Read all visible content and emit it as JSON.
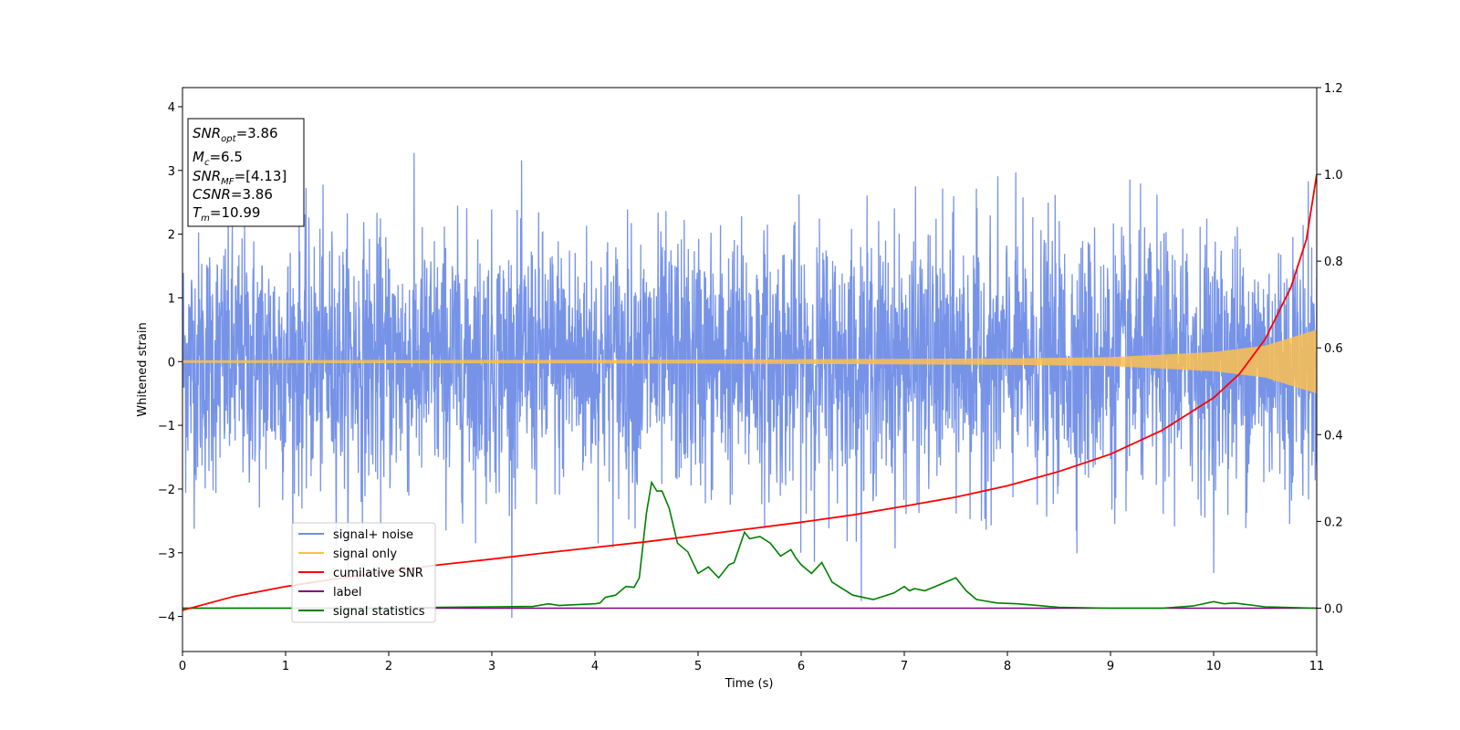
{
  "chart_data": {
    "type": "line",
    "xlabel": "Time (s)",
    "ylabel": "Whitened strain",
    "xlim": [
      0,
      11
    ],
    "ylim": [
      -4.55,
      4.3
    ],
    "y2lim": [
      -0.1,
      1.2
    ],
    "x_ticks": [
      0,
      1,
      2,
      3,
      4,
      5,
      6,
      7,
      8,
      9,
      10,
      11
    ],
    "y_ticks": [
      -4,
      -3,
      -2,
      -1,
      0,
      1,
      2,
      3,
      4
    ],
    "y_tick_labels": [
      "−4",
      "−3",
      "−2",
      "−1",
      "0",
      "1",
      "2",
      "3",
      "4"
    ],
    "y2_ticks": [
      0.0,
      0.2,
      0.4,
      0.6,
      0.8,
      1.0,
      1.2
    ],
    "y2_tick_labels": [
      "0.0",
      "0.2",
      "0.4",
      "0.6",
      "0.8",
      "1.0",
      "1.2"
    ],
    "info_box": {
      "snr_opt": {
        "main": "SNR",
        "sub": "opt",
        "value": "=3.86"
      },
      "mc": {
        "main": "M",
        "sub": "c",
        "value": "=6.5"
      },
      "snr_mf": {
        "main": "SNR",
        "sub": "MF",
        "value": "=[4.13]"
      },
      "csnr": {
        "main": "CSNR",
        "value": "=3.86"
      },
      "tm": {
        "main": "T",
        "sub": "m",
        "value": "=10.99"
      }
    },
    "legend_position": "lower-left",
    "series": [
      {
        "name": "signal+ noise",
        "color": "#6f8de6",
        "axis": "left",
        "description_stats": {
          "std": 1.0,
          "max_excursion": 4.1
        }
      },
      {
        "name": "signal only",
        "color": "#fdbf4f",
        "axis": "left",
        "envelope_amplitude": [
          [
            0,
            0.02
          ],
          [
            5,
            0.03
          ],
          [
            8,
            0.05
          ],
          [
            9,
            0.07
          ],
          [
            10,
            0.15
          ],
          [
            10.5,
            0.25
          ],
          [
            11,
            0.5
          ]
        ]
      },
      {
        "name": "cumilative SNR",
        "color": "#ff0000",
        "axis": "right",
        "points": [
          [
            0,
            -0.005
          ],
          [
            0.5,
            0.027
          ],
          [
            1,
            0.05
          ],
          [
            1.5,
            0.068
          ],
          [
            2,
            0.085
          ],
          [
            2.5,
            0.1
          ],
          [
            3,
            0.113
          ],
          [
            3.5,
            0.127
          ],
          [
            4,
            0.14
          ],
          [
            4.5,
            0.153
          ],
          [
            5,
            0.168
          ],
          [
            5.5,
            0.183
          ],
          [
            6,
            0.198
          ],
          [
            6.5,
            0.215
          ],
          [
            7,
            0.235
          ],
          [
            7.5,
            0.256
          ],
          [
            8,
            0.282
          ],
          [
            8.5,
            0.315
          ],
          [
            9,
            0.355
          ],
          [
            9.5,
            0.41
          ],
          [
            10,
            0.485
          ],
          [
            10.25,
            0.54
          ],
          [
            10.5,
            0.62
          ],
          [
            10.75,
            0.74
          ],
          [
            10.9,
            0.85
          ],
          [
            11,
            1.0
          ]
        ]
      },
      {
        "name": "label",
        "color": "#800080",
        "axis": "right",
        "points": [
          [
            0,
            0.0
          ],
          [
            11,
            0.0
          ]
        ]
      },
      {
        "name": "signal statistics",
        "color": "#008000",
        "axis": "right",
        "points": [
          [
            0,
            0.0
          ],
          [
            1,
            0.0
          ],
          [
            2,
            0.0
          ],
          [
            2.5,
            0.002
          ],
          [
            3,
            0.003
          ],
          [
            3.4,
            0.004
          ],
          [
            3.55,
            0.01
          ],
          [
            3.65,
            0.006
          ],
          [
            3.8,
            0.008
          ],
          [
            4.0,
            0.01
          ],
          [
            4.05,
            0.012
          ],
          [
            4.1,
            0.025
          ],
          [
            4.2,
            0.03
          ],
          [
            4.3,
            0.05
          ],
          [
            4.38,
            0.048
          ],
          [
            4.43,
            0.07
          ],
          [
            4.5,
            0.22
          ],
          [
            4.55,
            0.29
          ],
          [
            4.6,
            0.27
          ],
          [
            4.65,
            0.27
          ],
          [
            4.72,
            0.23
          ],
          [
            4.8,
            0.15
          ],
          [
            4.9,
            0.13
          ],
          [
            5.0,
            0.08
          ],
          [
            5.1,
            0.095
          ],
          [
            5.2,
            0.07
          ],
          [
            5.3,
            0.1
          ],
          [
            5.35,
            0.105
          ],
          [
            5.45,
            0.175
          ],
          [
            5.5,
            0.16
          ],
          [
            5.6,
            0.165
          ],
          [
            5.7,
            0.15
          ],
          [
            5.8,
            0.12
          ],
          [
            5.9,
            0.135
          ],
          [
            5.95,
            0.115
          ],
          [
            6.0,
            0.1
          ],
          [
            6.1,
            0.08
          ],
          [
            6.2,
            0.105
          ],
          [
            6.3,
            0.06
          ],
          [
            6.5,
            0.03
          ],
          [
            6.7,
            0.02
          ],
          [
            6.9,
            0.035
          ],
          [
            7.0,
            0.05
          ],
          [
            7.05,
            0.04
          ],
          [
            7.1,
            0.045
          ],
          [
            7.2,
            0.04
          ],
          [
            7.3,
            0.05
          ],
          [
            7.45,
            0.065
          ],
          [
            7.5,
            0.07
          ],
          [
            7.6,
            0.04
          ],
          [
            7.7,
            0.02
          ],
          [
            7.9,
            0.012
          ],
          [
            8.1,
            0.01
          ],
          [
            8.5,
            0.002
          ],
          [
            9.0,
            0.0
          ],
          [
            9.5,
            0.0
          ],
          [
            9.8,
            0.005
          ],
          [
            10.0,
            0.015
          ],
          [
            10.1,
            0.01
          ],
          [
            10.2,
            0.012
          ],
          [
            10.5,
            0.003
          ],
          [
            11,
            0.0
          ]
        ]
      }
    ]
  }
}
